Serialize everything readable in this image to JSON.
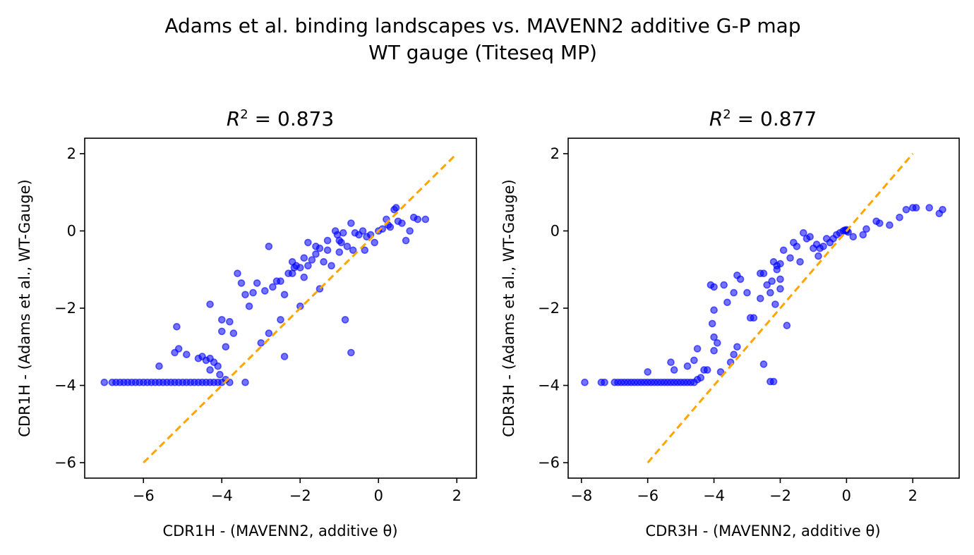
{
  "suptitle": {
    "line1": "Adams et al. binding landscapes vs. MAVENN2 additive G-P map",
    "line2": "WT gauge (Titeseq MP)"
  },
  "colors": {
    "points": "#0000ff",
    "diagonal": "#ffa500",
    "axes": "#000000"
  },
  "chart_data": [
    {
      "type": "scatter",
      "title": "R² = 0.873",
      "title_parts": {
        "symbol": "R",
        "exponent": "2",
        "rest": " = 0.873"
      },
      "xlabel": "CDR1H - (MAVENN2, additive θ)",
      "ylabel": "CDR1H - (Adams et al., WT-Gauge)",
      "xlim": [
        -7.5,
        2.5
      ],
      "ylim": [
        -6.4,
        2.4
      ],
      "xticks": [
        -6,
        -4,
        -2,
        0,
        2
      ],
      "yticks": [
        -6,
        -4,
        -2,
        0,
        2
      ],
      "grid": false,
      "diagonal": {
        "x": [
          -6,
          2
        ],
        "y": [
          -6,
          2
        ],
        "style": "dashed"
      },
      "points": [
        [
          -7.0,
          -3.92
        ],
        [
          -6.8,
          -3.92
        ],
        [
          -6.7,
          -3.92
        ],
        [
          -6.6,
          -3.92
        ],
        [
          -6.5,
          -3.92
        ],
        [
          -6.4,
          -3.92
        ],
        [
          -6.3,
          -3.92
        ],
        [
          -6.2,
          -3.92
        ],
        [
          -6.1,
          -3.92
        ],
        [
          -6.0,
          -3.92
        ],
        [
          -5.9,
          -3.92
        ],
        [
          -5.8,
          -3.92
        ],
        [
          -5.7,
          -3.92
        ],
        [
          -5.6,
          -3.92
        ],
        [
          -5.5,
          -3.92
        ],
        [
          -5.4,
          -3.92
        ],
        [
          -5.3,
          -3.92
        ],
        [
          -5.2,
          -3.92
        ],
        [
          -5.1,
          -3.92
        ],
        [
          -5.0,
          -3.92
        ],
        [
          -4.9,
          -3.92
        ],
        [
          -4.8,
          -3.92
        ],
        [
          -4.7,
          -3.92
        ],
        [
          -4.6,
          -3.92
        ],
        [
          -4.5,
          -3.92
        ],
        [
          -4.4,
          -3.92
        ],
        [
          -4.3,
          -3.92
        ],
        [
          -4.2,
          -3.92
        ],
        [
          -4.1,
          -3.92
        ],
        [
          -4.0,
          -3.92
        ],
        [
          -3.8,
          -3.92
        ],
        [
          -3.4,
          -3.92
        ],
        [
          -5.6,
          -3.5
        ],
        [
          -5.2,
          -3.15
        ],
        [
          -5.1,
          -3.05
        ],
        [
          -5.15,
          -2.48
        ],
        [
          -4.9,
          -3.2
        ],
        [
          -4.6,
          -3.3
        ],
        [
          -4.5,
          -3.25
        ],
        [
          -4.4,
          -3.35
        ],
        [
          -4.3,
          -3.3
        ],
        [
          -4.2,
          -3.4
        ],
        [
          -4.1,
          -3.5
        ],
        [
          -4.05,
          -3.72
        ],
        [
          -4.3,
          -3.6
        ],
        [
          -4.0,
          -2.3
        ],
        [
          -4.0,
          -2.6
        ],
        [
          -3.9,
          -3.0
        ],
        [
          -3.8,
          -2.35
        ],
        [
          -3.7,
          -2.65
        ],
        [
          -4.3,
          -1.9
        ],
        [
          -3.6,
          -1.1
        ],
        [
          -3.5,
          -1.35
        ],
        [
          -3.4,
          -1.65
        ],
        [
          -3.3,
          -1.95
        ],
        [
          -3.2,
          -1.6
        ],
        [
          -3.1,
          -1.35
        ],
        [
          -3.0,
          -2.9
        ],
        [
          -2.9,
          -1.55
        ],
        [
          -2.8,
          -0.4
        ],
        [
          -2.8,
          -2.65
        ],
        [
          -2.7,
          -1.45
        ],
        [
          -2.6,
          -1.3
        ],
        [
          -2.5,
          -1.3
        ],
        [
          -2.5,
          -2.3
        ],
        [
          -2.4,
          -1.65
        ],
        [
          -2.3,
          -1.1
        ],
        [
          -2.2,
          -1.1
        ],
        [
          -2.2,
          -0.8
        ],
        [
          -2.1,
          -0.9
        ],
        [
          -2.0,
          -0.95
        ],
        [
          -2.0,
          -1.95
        ],
        [
          -1.9,
          -0.7
        ],
        [
          -1.9,
          -1.2
        ],
        [
          -1.8,
          -0.3
        ],
        [
          -1.8,
          -0.9
        ],
        [
          -1.7,
          -0.75
        ],
        [
          -1.6,
          -0.6
        ],
        [
          -1.6,
          -0.4
        ],
        [
          -1.5,
          -0.45
        ],
        [
          -1.5,
          -1.5
        ],
        [
          -1.4,
          -0.8
        ],
        [
          -1.3,
          -0.25
        ],
        [
          -1.2,
          -0.9
        ],
        [
          -1.1,
          0.0
        ],
        [
          -1.0,
          -0.55
        ],
        [
          -0.95,
          -0.3
        ],
        [
          -0.9,
          -0.05
        ],
        [
          -0.8,
          -0.4
        ],
        [
          -0.7,
          0.2
        ],
        [
          -0.6,
          -0.05
        ],
        [
          -0.5,
          -0.1
        ],
        [
          -0.4,
          0.0
        ],
        [
          -0.3,
          -0.15
        ],
        [
          -0.2,
          -0.1
        ],
        [
          -0.1,
          -0.3
        ],
        [
          0.0,
          0.0
        ],
        [
          0.1,
          0.05
        ],
        [
          0.2,
          0.3
        ],
        [
          0.3,
          0.1
        ],
        [
          0.4,
          0.55
        ],
        [
          0.45,
          0.6
        ],
        [
          0.5,
          0.25
        ],
        [
          0.6,
          0.2
        ],
        [
          0.7,
          -0.25
        ],
        [
          0.8,
          0.0
        ],
        [
          0.9,
          0.35
        ],
        [
          1.0,
          0.3
        ],
        [
          1.2,
          0.3
        ],
        [
          -0.85,
          -2.3
        ],
        [
          -0.7,
          -3.15
        ],
        [
          -2.4,
          -3.25
        ],
        [
          -1.0,
          -0.25
        ],
        [
          -0.65,
          -0.5
        ],
        [
          -1.3,
          -0.5
        ],
        [
          -2.15,
          -0.95
        ],
        [
          0.25,
          0.15
        ],
        [
          -0.35,
          -0.5
        ],
        [
          -1.05,
          -0.1
        ],
        [
          -3.9,
          -3.85
        ]
      ]
    },
    {
      "type": "scatter",
      "title": "R² = 0.877",
      "title_parts": {
        "symbol": "R",
        "exponent": "2",
        "rest": " = 0.877"
      },
      "xlabel": "CDR3H - (MAVENN2, additive θ)",
      "ylabel": "CDR3H - (Adams et al., WT-Gauge)",
      "xlim": [
        -8.4,
        3.4
      ],
      "ylim": [
        -6.4,
        2.4
      ],
      "xticks": [
        -8,
        -6,
        -4,
        -2,
        0,
        2
      ],
      "yticks": [
        -6,
        -4,
        -2,
        0,
        2
      ],
      "grid": false,
      "diagonal": {
        "x": [
          -6,
          2
        ],
        "y": [
          -6,
          2
        ],
        "style": "dashed"
      },
      "points": [
        [
          -7.9,
          -3.92
        ],
        [
          -7.4,
          -3.92
        ],
        [
          -7.3,
          -3.92
        ],
        [
          -7.0,
          -3.92
        ],
        [
          -6.9,
          -3.92
        ],
        [
          -6.8,
          -3.92
        ],
        [
          -6.7,
          -3.92
        ],
        [
          -6.6,
          -3.92
        ],
        [
          -6.5,
          -3.92
        ],
        [
          -6.4,
          -3.92
        ],
        [
          -6.3,
          -3.92
        ],
        [
          -6.2,
          -3.92
        ],
        [
          -6.1,
          -3.92
        ],
        [
          -6.0,
          -3.92
        ],
        [
          -5.9,
          -3.92
        ],
        [
          -5.8,
          -3.92
        ],
        [
          -5.7,
          -3.92
        ],
        [
          -5.6,
          -3.92
        ],
        [
          -5.5,
          -3.92
        ],
        [
          -5.4,
          -3.92
        ],
        [
          -5.3,
          -3.92
        ],
        [
          -5.2,
          -3.92
        ],
        [
          -5.1,
          -3.92
        ],
        [
          -5.0,
          -3.92
        ],
        [
          -4.9,
          -3.92
        ],
        [
          -4.8,
          -3.92
        ],
        [
          -4.7,
          -3.92
        ],
        [
          -4.6,
          -3.92
        ],
        [
          -4.5,
          -3.85
        ],
        [
          -4.4,
          -3.8
        ],
        [
          -6.0,
          -3.65
        ],
        [
          -5.3,
          -3.4
        ],
        [
          -5.2,
          -3.6
        ],
        [
          -4.8,
          -3.5
        ],
        [
          -4.6,
          -3.35
        ],
        [
          -4.5,
          -3.05
        ],
        [
          -4.3,
          -3.6
        ],
        [
          -4.2,
          -3.6
        ],
        [
          -4.0,
          -2.75
        ],
        [
          -4.0,
          -3.1
        ],
        [
          -3.9,
          -2.9
        ],
        [
          -3.8,
          -3.65
        ],
        [
          -3.5,
          -3.4
        ],
        [
          -3.4,
          -3.2
        ],
        [
          -3.3,
          -3.0
        ],
        [
          -4.05,
          -2.4
        ],
        [
          -4.0,
          -2.05
        ],
        [
          -3.7,
          -1.4
        ],
        [
          -4.1,
          -1.4
        ],
        [
          -4.0,
          -1.45
        ],
        [
          -3.6,
          -1.85
        ],
        [
          -3.4,
          -1.6
        ],
        [
          -3.3,
          -1.15
        ],
        [
          -3.2,
          -1.25
        ],
        [
          -3.0,
          -1.6
        ],
        [
          -2.9,
          -2.25
        ],
        [
          -2.8,
          -2.25
        ],
        [
          -2.6,
          -1.1
        ],
        [
          -2.5,
          -1.1
        ],
        [
          -2.4,
          -1.4
        ],
        [
          -2.3,
          -1.6
        ],
        [
          -2.2,
          -0.8
        ],
        [
          -2.1,
          -0.9
        ],
        [
          -2.0,
          -1.5
        ],
        [
          -2.0,
          -0.85
        ],
        [
          -1.9,
          -0.5
        ],
        [
          -1.8,
          -2.45
        ],
        [
          -1.7,
          -0.7
        ],
        [
          -1.6,
          -0.3
        ],
        [
          -1.5,
          -0.4
        ],
        [
          -1.4,
          -0.8
        ],
        [
          -1.3,
          -0.05
        ],
        [
          -1.2,
          -0.2
        ],
        [
          -1.0,
          -0.45
        ],
        [
          -0.9,
          -0.35
        ],
        [
          -0.8,
          -0.45
        ],
        [
          -0.7,
          -0.4
        ],
        [
          -0.6,
          -0.2
        ],
        [
          -0.5,
          -0.3
        ],
        [
          -0.4,
          -0.2
        ],
        [
          -0.3,
          -0.1
        ],
        [
          -0.2,
          -0.05
        ],
        [
          -0.1,
          0.0
        ],
        [
          0.0,
          0.0
        ],
        [
          0.0,
          0.03
        ],
        [
          0.05,
          -0.03
        ],
        [
          -0.05,
          0.02
        ],
        [
          0.2,
          -0.15
        ],
        [
          0.5,
          -0.1
        ],
        [
          0.6,
          0.05
        ],
        [
          1.0,
          0.2
        ],
        [
          1.3,
          0.15
        ],
        [
          1.6,
          0.35
        ],
        [
          1.8,
          0.55
        ],
        [
          2.0,
          0.6
        ],
        [
          2.1,
          0.6
        ],
        [
          2.5,
          0.6
        ],
        [
          2.8,
          0.45
        ],
        [
          2.9,
          0.55
        ],
        [
          0.9,
          0.25
        ],
        [
          -2.5,
          -3.45
        ],
        [
          -2.3,
          -3.9
        ],
        [
          -2.2,
          -3.9
        ],
        [
          -2.1,
          -1.0
        ],
        [
          -2.15,
          -1.9
        ],
        [
          -2.25,
          -1.3
        ],
        [
          -2.6,
          -1.75
        ],
        [
          -1.1,
          -0.15
        ],
        [
          -0.85,
          -0.65
        ],
        [
          -2.0,
          -1.25
        ]
      ]
    }
  ]
}
